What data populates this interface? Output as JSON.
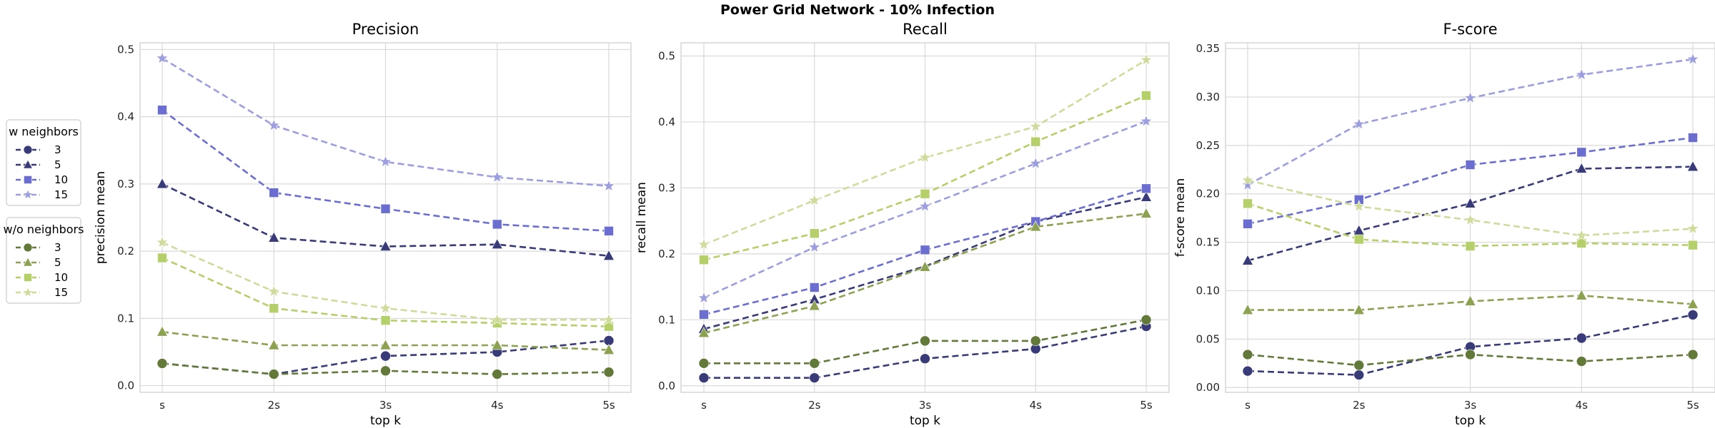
{
  "figure": {
    "suptitle": "Power Grid Network - 10% Infection"
  },
  "legend": {
    "groups": [
      {
        "title": "w neighbors",
        "items": [
          "3",
          "5",
          "10",
          "15"
        ]
      },
      {
        "title": "w/o neighbors",
        "items": [
          "3",
          "5",
          "10",
          "15"
        ]
      }
    ]
  },
  "colors": {
    "w_neighbors": [
      "#393b79",
      "#393b79",
      "#6b6ecf",
      "#9c9ede"
    ],
    "wo_neighbors": [
      "#637939",
      "#8ca252",
      "#b5cf6b",
      "#cedb9c"
    ]
  },
  "markers": [
    "circle",
    "triangle",
    "square",
    "star"
  ],
  "chart_data": [
    {
      "type": "line",
      "title": "Precision",
      "xlabel": "top k",
      "ylabel": "precision mean",
      "categories": [
        "s",
        "2s",
        "3s",
        "4s",
        "5s"
      ],
      "ylim": [
        -0.01,
        0.51
      ],
      "yticks": [
        "0.0",
        "0.1",
        "0.2",
        "0.3",
        "0.4",
        "0.5"
      ],
      "grid": true,
      "series": [
        {
          "name": "3",
          "group": "w neighbors",
          "values": [
            0.033,
            0.017,
            0.044,
            0.05,
            0.067
          ]
        },
        {
          "name": "5",
          "group": "w neighbors",
          "values": [
            0.3,
            0.22,
            0.207,
            0.21,
            0.193
          ]
        },
        {
          "name": "10",
          "group": "w neighbors",
          "values": [
            0.41,
            0.287,
            0.263,
            0.24,
            0.23
          ]
        },
        {
          "name": "15",
          "group": "w neighbors",
          "values": [
            0.487,
            0.387,
            0.333,
            0.31,
            0.297
          ]
        },
        {
          "name": "3",
          "group": "w/o neighbors",
          "values": [
            0.033,
            0.017,
            0.022,
            0.017,
            0.02
          ]
        },
        {
          "name": "5",
          "group": "w/o neighbors",
          "values": [
            0.08,
            0.06,
            0.06,
            0.06,
            0.053
          ]
        },
        {
          "name": "10",
          "group": "w/o neighbors",
          "values": [
            0.19,
            0.115,
            0.097,
            0.093,
            0.088
          ]
        },
        {
          "name": "15",
          "group": "w/o neighbors",
          "values": [
            0.213,
            0.14,
            0.115,
            0.098,
            0.098
          ]
        }
      ]
    },
    {
      "type": "line",
      "title": "Recall",
      "xlabel": "top k",
      "ylabel": "recall mean",
      "categories": [
        "s",
        "2s",
        "3s",
        "4s",
        "5s"
      ],
      "ylim": [
        -0.01,
        0.52
      ],
      "yticks": [
        "0.0",
        "0.1",
        "0.2",
        "0.3",
        "0.4",
        "0.5"
      ],
      "grid": true,
      "series": [
        {
          "name": "3",
          "group": "w neighbors",
          "values": [
            0.012,
            0.012,
            0.041,
            0.056,
            0.09
          ]
        },
        {
          "name": "5",
          "group": "w neighbors",
          "values": [
            0.086,
            0.131,
            0.181,
            0.249,
            0.286
          ]
        },
        {
          "name": "10",
          "group": "w neighbors",
          "values": [
            0.108,
            0.149,
            0.206,
            0.249,
            0.299
          ]
        },
        {
          "name": "15",
          "group": "w neighbors",
          "values": [
            0.133,
            0.21,
            0.272,
            0.337,
            0.401
          ]
        },
        {
          "name": "3",
          "group": "w/o neighbors",
          "values": [
            0.034,
            0.034,
            0.068,
            0.068,
            0.1
          ]
        },
        {
          "name": "5",
          "group": "w/o neighbors",
          "values": [
            0.08,
            0.121,
            0.18,
            0.241,
            0.261
          ]
        },
        {
          "name": "10",
          "group": "w/o neighbors",
          "values": [
            0.191,
            0.231,
            0.291,
            0.37,
            0.44
          ]
        },
        {
          "name": "15",
          "group": "w/o neighbors",
          "values": [
            0.214,
            0.281,
            0.346,
            0.393,
            0.494
          ]
        }
      ]
    },
    {
      "type": "line",
      "title": "F-score",
      "xlabel": "top k",
      "ylabel": "f-score mean",
      "categories": [
        "s",
        "2s",
        "3s",
        "4s",
        "5s"
      ],
      "ylim": [
        -0.005,
        0.356
      ],
      "yticks": [
        "0.00",
        "0.05",
        "0.10",
        "0.15",
        "0.20",
        "0.25",
        "0.30",
        "0.35"
      ],
      "grid": true,
      "series": [
        {
          "name": "3",
          "group": "w neighbors",
          "values": [
            0.017,
            0.013,
            0.042,
            0.051,
            0.075
          ]
        },
        {
          "name": "5",
          "group": "w neighbors",
          "values": [
            0.131,
            0.162,
            0.19,
            0.226,
            0.228
          ]
        },
        {
          "name": "10",
          "group": "w neighbors",
          "values": [
            0.169,
            0.194,
            0.23,
            0.243,
            0.258
          ]
        },
        {
          "name": "15",
          "group": "w neighbors",
          "values": [
            0.209,
            0.272,
            0.299,
            0.323,
            0.339
          ]
        },
        {
          "name": "3",
          "group": "w/o neighbors",
          "values": [
            0.034,
            0.023,
            0.034,
            0.027,
            0.034
          ]
        },
        {
          "name": "5",
          "group": "w/o neighbors",
          "values": [
            0.08,
            0.08,
            0.089,
            0.095,
            0.086
          ]
        },
        {
          "name": "10",
          "group": "w/o neighbors",
          "values": [
            0.19,
            0.153,
            0.146,
            0.149,
            0.147
          ]
        },
        {
          "name": "15",
          "group": "w/o neighbors",
          "values": [
            0.214,
            0.187,
            0.173,
            0.157,
            0.164
          ]
        }
      ]
    }
  ]
}
